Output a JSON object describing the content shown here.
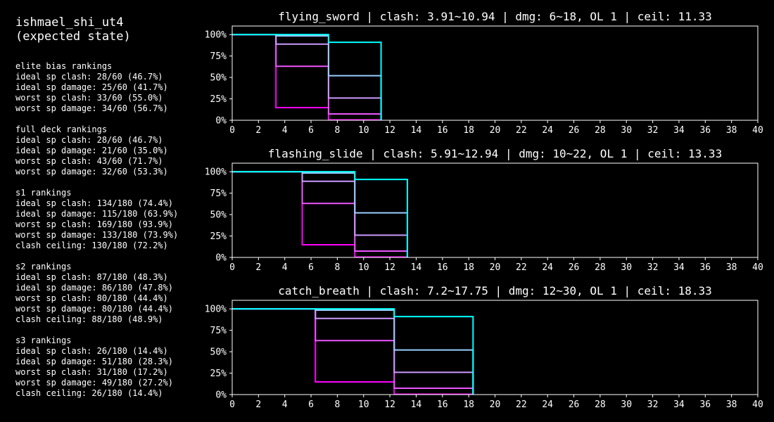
{
  "left": {
    "title_line1": "ishmael_shi_ut4",
    "title_line2": "(expected state)",
    "sections": [
      {
        "heading": "elite bias rankings",
        "lines": [
          "ideal sp clash: 28/60 (46.7%)",
          "ideal sp damage: 25/60 (41.7%)",
          "worst sp clash: 33/60 (55.0%)",
          "worst sp damage: 34/60 (56.7%)"
        ]
      },
      {
        "heading": "full deck rankings",
        "lines": [
          "ideal sp clash: 28/60 (46.7%)",
          "ideal sp damage: 21/60 (35.0%)",
          "worst sp clash: 43/60 (71.7%)",
          "worst sp damage: 32/60 (53.3%)"
        ]
      },
      {
        "heading": "s1 rankings",
        "lines": [
          "ideal sp clash: 134/180 (74.4%)",
          "ideal sp damage: 115/180 (63.9%)",
          "worst sp clash: 169/180 (93.9%)",
          "worst sp damage: 133/180 (73.9%)",
          "clash ceiling: 130/180 (72.2%)"
        ]
      },
      {
        "heading": "s2 rankings",
        "lines": [
          "ideal sp clash: 87/180 (48.3%)",
          "ideal sp damage: 86/180 (47.8%)",
          "worst sp clash: 80/180 (44.4%)",
          "worst sp damage: 80/180 (44.4%)",
          "clash ceiling: 88/180 (48.9%)"
        ]
      },
      {
        "heading": "s3 rankings",
        "lines": [
          "ideal sp clash: 26/180 (14.4%)",
          "ideal sp damage: 51/180 (28.3%)",
          "worst sp clash: 31/180 (17.2%)",
          "worst sp damage: 49/180 (27.2%)",
          "clash ceiling: 26/180 (14.4%)"
        ]
      }
    ]
  },
  "chart_data": [
    {
      "type": "line",
      "title": "flying_sword | clash: 3.91~10.94 | dmg: 6~18, OL 1 | ceil: 11.33",
      "xlim": [
        0,
        40
      ],
      "ylim": [
        0,
        1.1
      ],
      "xticks": [
        "0",
        "2",
        "4",
        "6",
        "8",
        "10",
        "12",
        "14",
        "16",
        "18",
        "20",
        "22",
        "24",
        "26",
        "28",
        "30",
        "32",
        "34",
        "36",
        "38",
        "40"
      ],
      "yticks": [
        "0%",
        "25%",
        "50%",
        "75%",
        "100%"
      ],
      "series": [
        {
          "color": "#ff00ff",
          "points": [
            [
              0,
              1
            ],
            [
              3.33,
              1
            ],
            [
              3.33,
              0.148
            ],
            [
              7.33,
              0.148
            ],
            [
              7.33,
              0.004
            ],
            [
              11.33,
              0.004
            ],
            [
              11.33,
              0
            ]
          ]
        },
        {
          "color": "#ee55ff",
          "points": [
            [
              0,
              1
            ],
            [
              3.33,
              1
            ],
            [
              3.33,
              0.63
            ],
            [
              7.33,
              0.63
            ],
            [
              7.33,
              0.074
            ],
            [
              11.33,
              0.074
            ],
            [
              11.33,
              0
            ]
          ]
        },
        {
          "color": "#cc99ff",
          "points": [
            [
              0,
              1
            ],
            [
              3.33,
              1
            ],
            [
              3.33,
              0.889
            ],
            [
              7.33,
              0.889
            ],
            [
              7.33,
              0.26
            ],
            [
              11.33,
              0.26
            ],
            [
              11.33,
              0
            ]
          ]
        },
        {
          "color": "#99ccff",
          "points": [
            [
              0,
              1
            ],
            [
              3.33,
              1
            ],
            [
              3.33,
              0.985
            ],
            [
              7.33,
              0.985
            ],
            [
              7.33,
              0.52
            ],
            [
              11.33,
              0.52
            ],
            [
              11.33,
              0
            ]
          ]
        },
        {
          "color": "#00ffff",
          "points": [
            [
              0,
              1
            ],
            [
              7.33,
              1
            ],
            [
              7.33,
              0.91
            ],
            [
              11.33,
              0.91
            ],
            [
              11.33,
              0
            ]
          ]
        }
      ]
    },
    {
      "type": "line",
      "title": "flashing_slide | clash: 5.91~12.94 | dmg: 10~22, OL 1 | ceil: 13.33",
      "xlim": [
        0,
        40
      ],
      "ylim": [
        0,
        1.1
      ],
      "xticks": [
        "0",
        "2",
        "4",
        "6",
        "8",
        "10",
        "12",
        "14",
        "16",
        "18",
        "20",
        "22",
        "24",
        "26",
        "28",
        "30",
        "32",
        "34",
        "36",
        "38",
        "40"
      ],
      "yticks": [
        "0%",
        "25%",
        "50%",
        "75%",
        "100%"
      ],
      "series": [
        {
          "color": "#ff00ff",
          "points": [
            [
              0,
              1
            ],
            [
              5.33,
              1
            ],
            [
              5.33,
              0.148
            ],
            [
              9.33,
              0.148
            ],
            [
              9.33,
              0.004
            ],
            [
              13.33,
              0.004
            ],
            [
              13.33,
              0
            ]
          ]
        },
        {
          "color": "#ee55ff",
          "points": [
            [
              0,
              1
            ],
            [
              5.33,
              1
            ],
            [
              5.33,
              0.63
            ],
            [
              9.33,
              0.63
            ],
            [
              9.33,
              0.074
            ],
            [
              13.33,
              0.074
            ],
            [
              13.33,
              0
            ]
          ]
        },
        {
          "color": "#cc99ff",
          "points": [
            [
              0,
              1
            ],
            [
              5.33,
              1
            ],
            [
              5.33,
              0.889
            ],
            [
              9.33,
              0.889
            ],
            [
              9.33,
              0.26
            ],
            [
              13.33,
              0.26
            ],
            [
              13.33,
              0
            ]
          ]
        },
        {
          "color": "#99ccff",
          "points": [
            [
              0,
              1
            ],
            [
              5.33,
              1
            ],
            [
              5.33,
              0.985
            ],
            [
              9.33,
              0.985
            ],
            [
              9.33,
              0.52
            ],
            [
              13.33,
              0.52
            ],
            [
              13.33,
              0
            ]
          ]
        },
        {
          "color": "#00ffff",
          "points": [
            [
              0,
              1
            ],
            [
              9.33,
              1
            ],
            [
              9.33,
              0.91
            ],
            [
              13.33,
              0.91
            ],
            [
              13.33,
              0
            ]
          ]
        }
      ]
    },
    {
      "type": "line",
      "title": "catch_breath | clash: 7.2~17.75 | dmg: 12~30, OL 1 | ceil: 18.33",
      "xlim": [
        0,
        40
      ],
      "ylim": [
        0,
        1.1
      ],
      "xticks": [
        "0",
        "2",
        "4",
        "6",
        "8",
        "10",
        "12",
        "14",
        "16",
        "18",
        "20",
        "22",
        "24",
        "26",
        "28",
        "30",
        "32",
        "34",
        "36",
        "38",
        "40"
      ],
      "yticks": [
        "0%",
        "25%",
        "50%",
        "75%",
        "100%"
      ],
      "series": [
        {
          "color": "#ff00ff",
          "points": [
            [
              0,
              1
            ],
            [
              6.33,
              1
            ],
            [
              6.33,
              0.148
            ],
            [
              12.33,
              0.148
            ],
            [
              12.33,
              0.004
            ],
            [
              18.33,
              0.004
            ],
            [
              18.33,
              0
            ]
          ]
        },
        {
          "color": "#ee55ff",
          "points": [
            [
              0,
              1
            ],
            [
              6.33,
              1
            ],
            [
              6.33,
              0.63
            ],
            [
              12.33,
              0.63
            ],
            [
              12.33,
              0.074
            ],
            [
              18.33,
              0.074
            ],
            [
              18.33,
              0
            ]
          ]
        },
        {
          "color": "#cc99ff",
          "points": [
            [
              0,
              1
            ],
            [
              6.33,
              1
            ],
            [
              6.33,
              0.889
            ],
            [
              12.33,
              0.889
            ],
            [
              12.33,
              0.26
            ],
            [
              18.33,
              0.26
            ],
            [
              18.33,
              0
            ]
          ]
        },
        {
          "color": "#99ccff",
          "points": [
            [
              0,
              1
            ],
            [
              6.33,
              1
            ],
            [
              6.33,
              0.985
            ],
            [
              12.33,
              0.985
            ],
            [
              12.33,
              0.52
            ],
            [
              18.33,
              0.52
            ],
            [
              18.33,
              0
            ]
          ]
        },
        {
          "color": "#00ffff",
          "points": [
            [
              0,
              1
            ],
            [
              12.33,
              1
            ],
            [
              12.33,
              0.91
            ],
            [
              18.33,
              0.91
            ],
            [
              18.33,
              0
            ]
          ]
        }
      ]
    }
  ]
}
